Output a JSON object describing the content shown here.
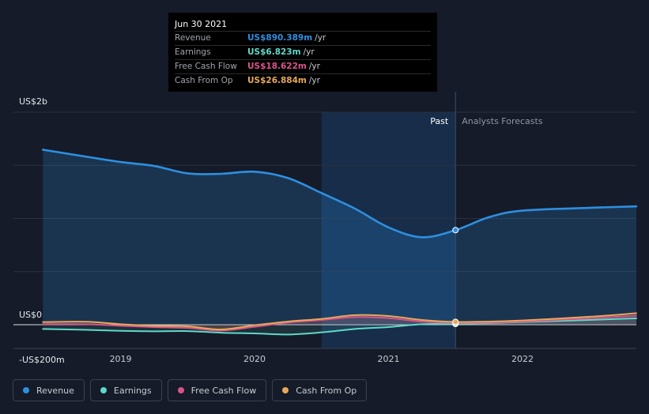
{
  "tooltip": {
    "date": "Jun 30 2021",
    "rows": [
      {
        "label": "Revenue",
        "value": "US$890.389m",
        "unit": "/yr",
        "color": "#2e8fe0"
      },
      {
        "label": "Earnings",
        "value": "US$6.823m",
        "unit": "/yr",
        "color": "#5fd9c8"
      },
      {
        "label": "Free Cash Flow",
        "value": "US$18.622m",
        "unit": "/yr",
        "color": "#d8548a"
      },
      {
        "label": "Cash From Op",
        "value": "US$26.884m",
        "unit": "/yr",
        "color": "#e8a85a"
      }
    ]
  },
  "legend": [
    {
      "label": "Revenue",
      "color": "#2e8fe0"
    },
    {
      "label": "Earnings",
      "color": "#5fd9c8"
    },
    {
      "label": "Free Cash Flow",
      "color": "#d8548a"
    },
    {
      "label": "Cash From Op",
      "color": "#e8a85a"
    }
  ],
  "chart_data": {
    "type": "line",
    "title": "",
    "x_unit": "year",
    "y_unit": "US$ millions",
    "ylim": [
      -200,
      2000
    ],
    "y_tick_labels": [
      "US$2b",
      "US$0",
      "-US$200m"
    ],
    "x_tick_labels": [
      "2019",
      "2020",
      "2021",
      "2022"
    ],
    "x_ticks": [
      2019.0,
      2020.0,
      2021.0,
      2022.0
    ],
    "xlim": [
      2018.2,
      2022.85
    ],
    "past_label": "Past",
    "forecast_label": "Analysts Forecasts",
    "highlight_range": [
      2020.5,
      2021.5
    ],
    "past_end": 2021.5,
    "series": [
      {
        "name": "Revenue",
        "color": "#2e8fe0",
        "fill": true,
        "x": [
          2018.42,
          2018.75,
          2019.0,
          2019.25,
          2019.5,
          2019.75,
          2020.0,
          2020.25,
          2020.5,
          2020.75,
          2021.0,
          2021.25,
          2021.5,
          2021.75,
          2022.0,
          2022.5,
          2022.85
        ],
        "y": [
          1647,
          1580,
          1531,
          1494,
          1424,
          1420,
          1440,
          1380,
          1239,
          1092,
          916,
          823,
          890,
          1012,
          1074,
          1100,
          1114
        ]
      },
      {
        "name": "Earnings",
        "color": "#5fd9c8",
        "fill": false,
        "x": [
          2018.42,
          2018.75,
          2019.0,
          2019.25,
          2019.5,
          2019.75,
          2020.0,
          2020.25,
          2020.5,
          2020.75,
          2021.0,
          2021.25,
          2021.5,
          2021.75,
          2022.0,
          2022.5,
          2022.85
        ],
        "y": [
          -40,
          -48,
          -58,
          -62,
          -60,
          -75,
          -82,
          -92,
          -72,
          -40,
          -22,
          5,
          7,
          15,
          25,
          45,
          60
        ]
      },
      {
        "name": "Free Cash Flow",
        "color": "#d8548a",
        "fill": false,
        "x": [
          2018.42,
          2018.75,
          2019.0,
          2019.25,
          2019.5,
          2019.75,
          2020.0,
          2020.25,
          2020.5,
          2020.75,
          2021.0,
          2021.25,
          2021.5,
          2021.75,
          2022.0,
          2022.5,
          2022.85
        ],
        "y": [
          5,
          5,
          -10,
          -22,
          -30,
          -55,
          -20,
          20,
          45,
          72,
          62,
          30,
          18.6,
          20,
          30,
          60,
          85
        ]
      },
      {
        "name": "Cash From Op",
        "color": "#e8a85a",
        "fill": false,
        "x": [
          2018.42,
          2018.75,
          2019.0,
          2019.25,
          2019.5,
          2019.75,
          2020.0,
          2020.25,
          2020.5,
          2020.75,
          2021.0,
          2021.25,
          2021.5,
          2021.75,
          2022.0,
          2022.5,
          2022.85
        ],
        "y": [
          25,
          28,
          5,
          -10,
          -15,
          -45,
          -5,
          30,
          55,
          90,
          82,
          45,
          26.9,
          30,
          40,
          75,
          108
        ]
      }
    ]
  }
}
